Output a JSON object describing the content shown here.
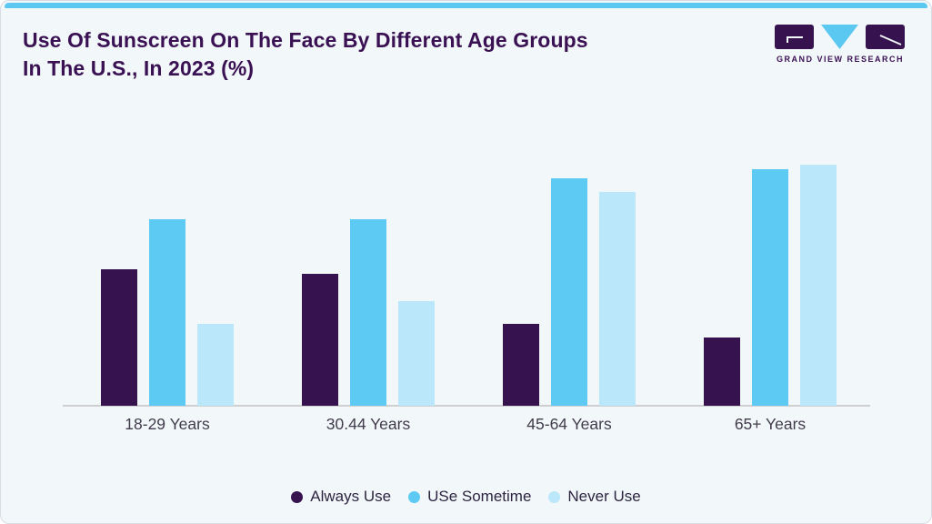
{
  "header": {
    "title": "Use Of Sunscreen On The Face By Different Age Groups In The U.S., In 2023 (%)",
    "logo_text": "GRAND VIEW RESEARCH"
  },
  "colors": {
    "accent_strip": "#5BC8F1",
    "title_text": "#3A1153",
    "background": "#F2F7FA",
    "axis_line": "#CFCFCF",
    "axis_label_text": "#413C4B",
    "legend_text": "#2E2541"
  },
  "chart_data": {
    "type": "bar",
    "title": "Use Of Sunscreen On The Face By Different Age Groups In The U.S., In 2023 (%)",
    "categories": [
      "18-29 Years",
      "30.44 Years",
      "45-64 Years",
      "65+ Years"
    ],
    "series": [
      {
        "name": "Always Use",
        "color": "#36124E",
        "values": [
          30,
          29,
          18,
          15
        ]
      },
      {
        "name": "USe Sometime",
        "color": "#5CCAF3",
        "values": [
          41,
          41,
          50,
          52
        ]
      },
      {
        "name": "Never Use",
        "color": "#BAE7F9",
        "values": [
          18,
          23,
          47,
          53
        ]
      }
    ],
    "xlabel": "",
    "ylabel": "",
    "ylim": [
      0,
      60
    ],
    "grid": false,
    "y_axis_visible": false,
    "legend_position": "bottom"
  }
}
